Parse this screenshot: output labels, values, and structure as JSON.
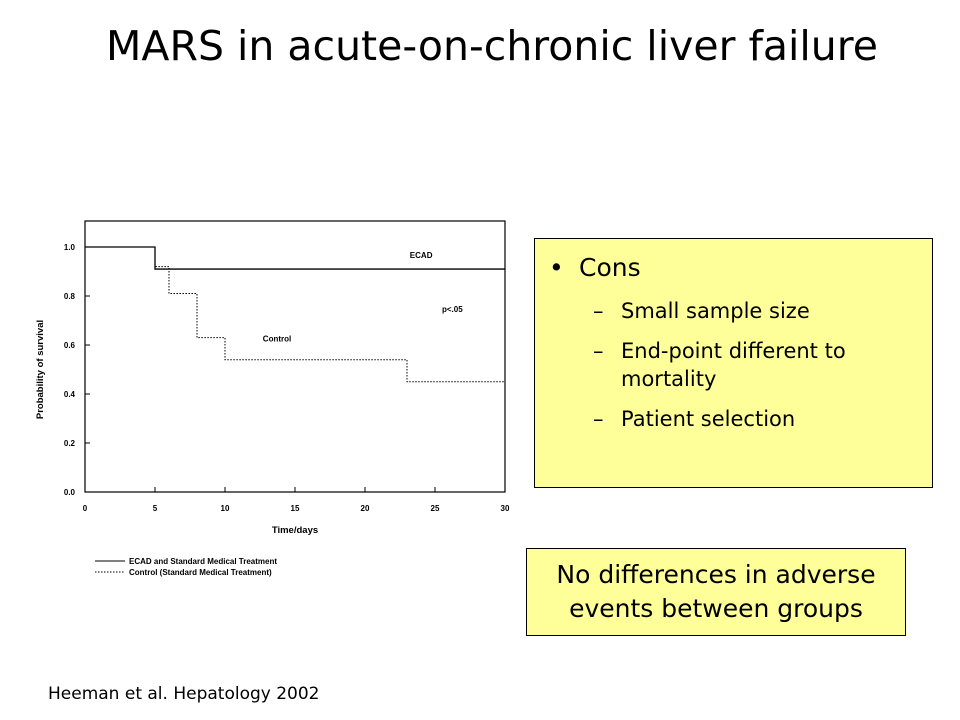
{
  "title": "MARS in acute-on-chronic liver failure",
  "cons": {
    "bullet": "•",
    "heading": "Cons",
    "dash": "–",
    "items": [
      "Small sample size",
      "End-point different to mortality",
      "Patient selection"
    ]
  },
  "note": "No differences in adverse events between groups",
  "citation": "Heeman et al. Hepatology 2002",
  "chart_data": {
    "type": "line",
    "xlabel": "Time/days",
    "ylabel": "Probability of survival",
    "xlim": [
      0,
      30
    ],
    "ylim": [
      0,
      1.0
    ],
    "xticks": [
      "0",
      "5",
      "10",
      "15",
      "20",
      "25",
      "30"
    ],
    "yticks": [
      "0.0",
      "0.2",
      "0.4",
      "0.6",
      "0.8",
      "1.0"
    ],
    "annotation": "p<.05",
    "grid": false,
    "series": [
      {
        "name": "ECAD",
        "style": "solid",
        "steps": [
          [
            0,
            1.0
          ],
          [
            5,
            1.0
          ],
          [
            5,
            0.91
          ],
          [
            30,
            0.91
          ]
        ]
      },
      {
        "name": "Control",
        "style": "dotted",
        "steps": [
          [
            0,
            1.0
          ],
          [
            5,
            1.0
          ],
          [
            5,
            0.92
          ],
          [
            6,
            0.92
          ],
          [
            6,
            0.81
          ],
          [
            8,
            0.81
          ],
          [
            8,
            0.63
          ],
          [
            10,
            0.63
          ],
          [
            10,
            0.54
          ],
          [
            23,
            0.54
          ],
          [
            23,
            0.45
          ],
          [
            30,
            0.45
          ]
        ]
      }
    ],
    "legend": [
      {
        "label": "ECAD and Standard Medical Treatment",
        "style": "solid"
      },
      {
        "label": "Control (Standard Medical Treatment)",
        "style": "dotted"
      }
    ]
  }
}
